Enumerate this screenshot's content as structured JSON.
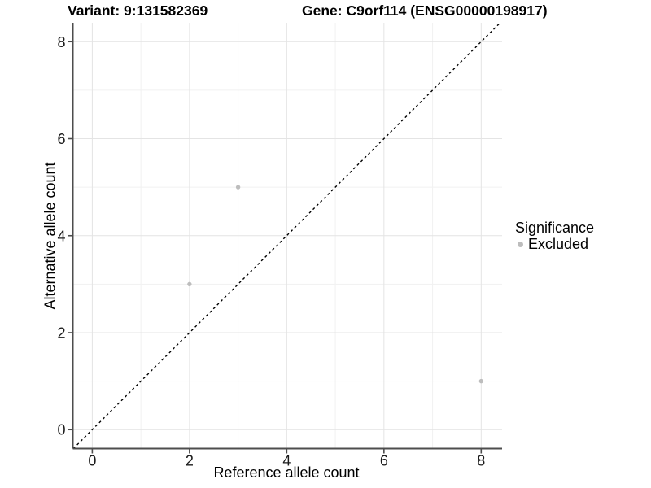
{
  "header": {
    "left_title": "Variant: 9:131582369",
    "right_title": "Gene: C9orf114 (ENSG00000198917)"
  },
  "chart_data": {
    "type": "scatter",
    "title_left": "Variant: 9:131582369",
    "title_right": "Gene: C9orf114 (ENSG00000198917)",
    "xlabel": "Reference allele count",
    "ylabel": "Alternative allele count",
    "xlim": [
      -0.4,
      8.43
    ],
    "ylim": [
      -0.39,
      8.39
    ],
    "x_ticks": [
      0,
      2,
      4,
      6,
      8
    ],
    "y_ticks": [
      0,
      2,
      4,
      6,
      8
    ],
    "x_minor": [
      1,
      3,
      5,
      7
    ],
    "y_minor": [
      1,
      3,
      5,
      7
    ],
    "grid": "major+minor",
    "series": [
      {
        "name": "Excluded",
        "color": "#bdbdbd",
        "points": [
          {
            "x": 2,
            "y": 3
          },
          {
            "x": 3,
            "y": 5
          },
          {
            "x": 8,
            "y": 1
          }
        ]
      }
    ],
    "reference_line": {
      "type": "identity y=x",
      "style": "dashed",
      "color": "#000000"
    },
    "legend": {
      "title": "Significance",
      "position": "right",
      "items": [
        {
          "label": "Excluded",
          "color": "#bdbdbd"
        }
      ]
    }
  },
  "colors": {
    "background": "#ffffff",
    "grid_major": "#e4e4e4",
    "grid_minor": "#f1f1f1",
    "axis_line": "#4d4d4d",
    "tick_text": "#1a1a1a",
    "point": "#bdbdbd",
    "dashed_line": "#000000"
  }
}
